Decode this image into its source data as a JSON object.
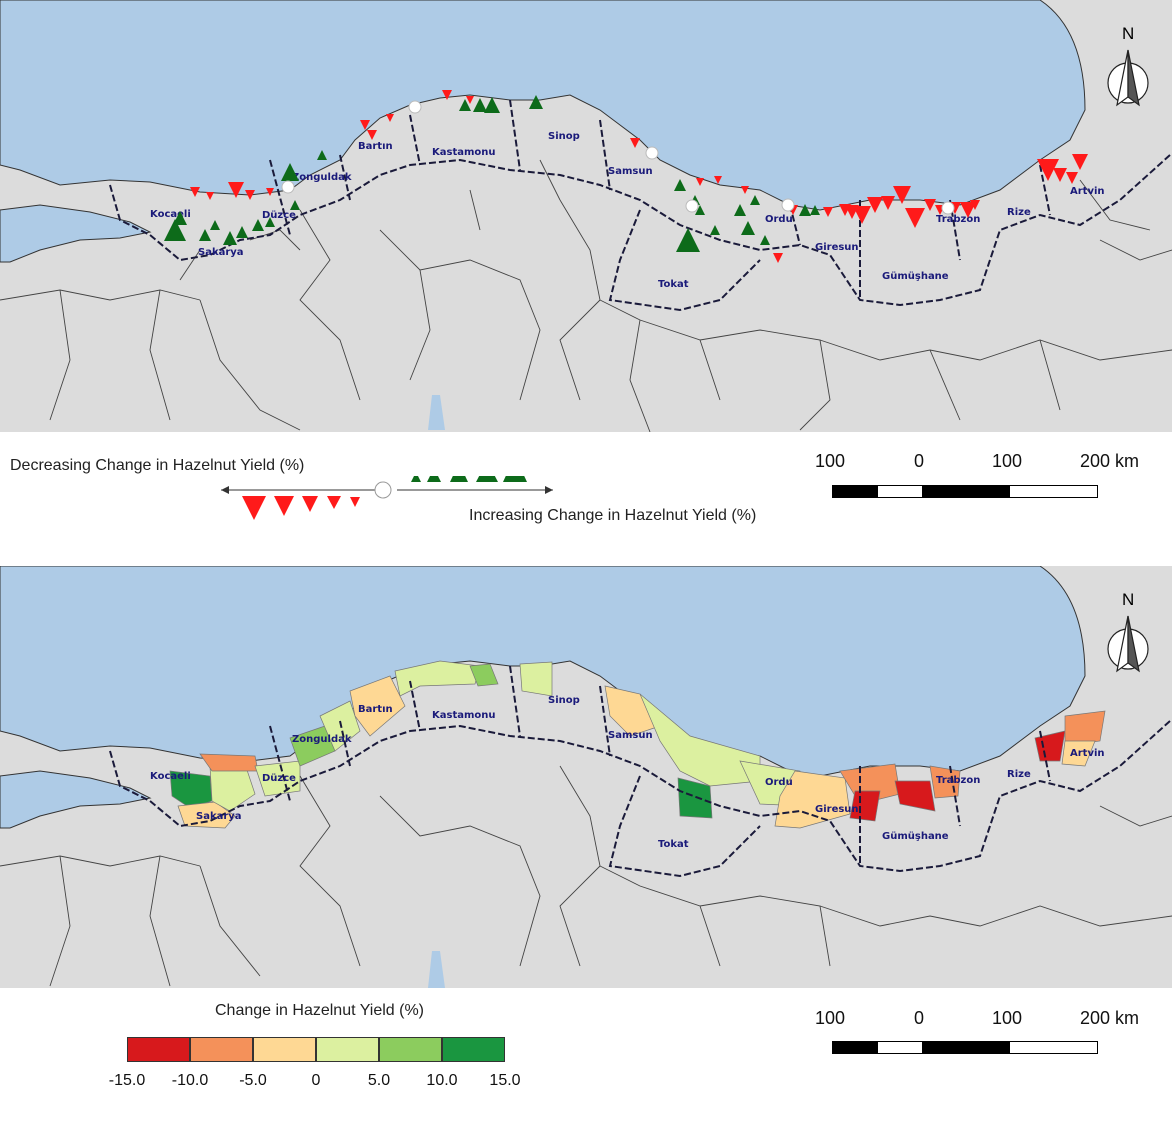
{
  "top_map": {
    "provinces": [
      "Kocaeli",
      "Sakarya",
      "Düzce",
      "Zonguldak",
      "Bartın",
      "Kastamonu",
      "Sinop",
      "Samsun",
      "Tokat",
      "Ordu",
      "Giresun",
      "Gümüşhane",
      "Trabzon",
      "Rize",
      "Artvin"
    ],
    "north_label": "N",
    "legend": {
      "decreasing_label": "Decreasing Change in Hazelnut Yield (%)",
      "increasing_label": "Increasing Change in Hazelnut Yield (%)",
      "decrease_color": "#ff1a1a",
      "increase_color": "#0d6b1a",
      "neutral_color": "#ffffff"
    },
    "scale": {
      "labels": [
        "100",
        "0",
        "100",
        "200 km"
      ]
    }
  },
  "bottom_map": {
    "provinces": [
      "Kocaeli",
      "Sakarya",
      "Düzce",
      "Zonguldak",
      "Bartın",
      "Kastamonu",
      "Sinop",
      "Samsun",
      "Tokat",
      "Ordu",
      "Giresun",
      "Gümüşhane",
      "Trabzon",
      "Rize",
      "Artvin"
    ],
    "north_label": "N",
    "legend": {
      "title": "Change in Hazelnut Yield (%)",
      "classes": [
        {
          "range": [
            -15.0,
            -10.0
          ],
          "color": "#d7191c"
        },
        {
          "range": [
            -10.0,
            -5.0
          ],
          "color": "#f4915a"
        },
        {
          "range": [
            -5.0,
            0
          ],
          "color": "#fed894"
        },
        {
          "range": [
            0,
            5.0
          ],
          "color": "#dcf0a0"
        },
        {
          "range": [
            5.0,
            10.0
          ],
          "color": "#8ccc5e"
        },
        {
          "range": [
            10.0,
            15.0
          ],
          "color": "#1a9640"
        }
      ],
      "tick_labels": [
        "-15.0",
        "-10.0",
        "-5.0",
        "0",
        "5.0",
        "10.0",
        "15.0"
      ]
    },
    "scale": {
      "labels": [
        "100",
        "0",
        "100",
        "200 km"
      ]
    }
  },
  "colors": {
    "sea": "#aecbe6",
    "land": "#dcdcdc",
    "border": "#1a1a3a"
  }
}
